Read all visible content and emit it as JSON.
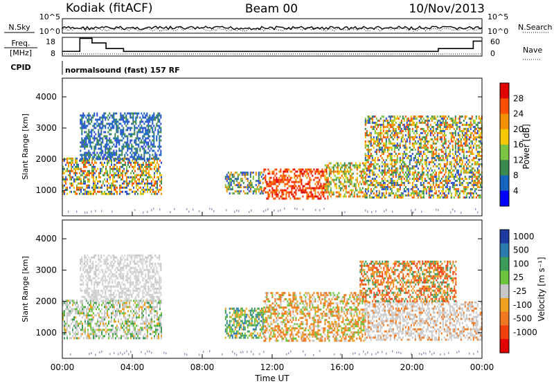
{
  "header": {
    "station": "Kodiak (fitACF)",
    "beam": "Beam 00",
    "date": "10/Nov/2013",
    "cpid_value": "normalsound (fast) 157 RF"
  },
  "left_labels": {
    "nsky": "N.Sky",
    "freq": "Freq.",
    "freq_unit": "[MHz]",
    "cpid": "CPID"
  },
  "right_labels": {
    "nsearch": "N.Search",
    "nave": "Nave"
  },
  "chart_data": [
    {
      "type": "line",
      "panel": "noise",
      "ylabels_left": [
        "10^5",
        "10^0"
      ],
      "ylabels_right": [
        "10^5",
        "10^0"
      ],
      "note": "noise.sky (solid) and noise.search (dotted), log scale"
    },
    {
      "type": "line",
      "panel": "frequency",
      "ylabels_left": [
        "18",
        "8"
      ],
      "ylabels_right": [
        "60",
        "0"
      ],
      "freq_segments": [
        [
          0,
          10.5
        ],
        [
          1.0,
          17.5
        ],
        [
          1.7,
          15
        ],
        [
          2.5,
          12
        ],
        [
          3.5,
          10.5
        ],
        [
          10.5,
          10.5
        ],
        [
          13.5,
          10.5
        ],
        [
          16.0,
          10.5
        ],
        [
          21.5,
          12
        ],
        [
          23.5,
          16
        ],
        [
          24,
          16
        ]
      ]
    },
    {
      "type": "heatmap",
      "panel": "power",
      "title": "Power [dB]",
      "ylabel": "Slant Range [km]",
      "yticks": [
        "1000",
        "2000",
        "3000",
        "4000"
      ],
      "ylim": [
        180,
        4600
      ],
      "colorbar": {
        "labels": [
          "28",
          "24",
          "20",
          "16",
          "12",
          "8",
          "4"
        ],
        "colors": [
          "#e00000",
          "#ff5000",
          "#f59000",
          "#f5c800",
          "#7cc441",
          "#3a8a50",
          "#1565c0",
          "#0000ff"
        ]
      }
    },
    {
      "type": "heatmap",
      "panel": "velocity",
      "title": "Velocity [m s⁻¹]",
      "ylabel": "Slant Range [km]",
      "yticks": [
        "1000",
        "2000",
        "3000",
        "4000"
      ],
      "ylim": [
        180,
        4600
      ],
      "colorbar": {
        "labels": [
          "1000",
          "500",
          "100",
          "25",
          "-25",
          "-100",
          "-500",
          "-1000"
        ],
        "colors": [
          "#1e3ca0",
          "#2a7ab0",
          "#3c9a5a",
          "#6cc43c",
          "#c8c8c8",
          "#f0a020",
          "#f07820",
          "#f04010",
          "#e00000"
        ]
      }
    }
  ],
  "xaxis": {
    "label": "Time UT",
    "ticks": [
      "00:00",
      "04:00",
      "08:00",
      "12:00",
      "16:00",
      "20:00",
      "00:00"
    ]
  },
  "regions": {
    "power": [
      {
        "t0": 0.0,
        "t1": 5.7,
        "r0": 900,
        "r1": 2050,
        "colors": [
          "#2b4fd0",
          "#3a8a50",
          "#7cc441",
          "#f5c800",
          "#f59000",
          "#ff5000"
        ]
      },
      {
        "t0": 1.0,
        "t1": 5.6,
        "r0": 2000,
        "r1": 3500,
        "colors": [
          "#2b4fd0",
          "#1565c0",
          "#3a8a50"
        ]
      },
      {
        "t0": 9.3,
        "t1": 11.5,
        "r0": 900,
        "r1": 1600,
        "colors": [
          "#2b4fd0",
          "#3a8a50",
          "#7cc441",
          "#f59000"
        ]
      },
      {
        "t0": 11.5,
        "t1": 15.2,
        "r0": 750,
        "r1": 1700,
        "colors": [
          "#e00000",
          "#ff3000",
          "#ff5000",
          "#f59000"
        ]
      },
      {
        "t0": 15.0,
        "t1": 17.3,
        "r0": 800,
        "r1": 1900,
        "colors": [
          "#ff5000",
          "#f59000",
          "#f5c800",
          "#7cc441",
          "#3a8a50"
        ]
      },
      {
        "t0": 17.3,
        "t1": 24.0,
        "r0": 800,
        "r1": 3400,
        "colors": [
          "#2b4fd0",
          "#3a8a50",
          "#7cc441",
          "#f5c800",
          "#f59000",
          "#ff5000"
        ]
      }
    ],
    "velocity": [
      {
        "t0": 0.0,
        "t1": 5.7,
        "r0": 850,
        "r1": 2050,
        "colors": [
          "#c8c8c8",
          "#c8c8c8",
          "#c8c8c8",
          "#3c9a5a",
          "#f0a020",
          "#6cc43c"
        ]
      },
      {
        "t0": 1.0,
        "t1": 5.6,
        "r0": 2000,
        "r1": 3500,
        "colors": [
          "#c8c8c8",
          "#d8d8d8"
        ]
      },
      {
        "t0": 9.3,
        "t1": 11.5,
        "r0": 850,
        "r1": 1800,
        "colors": [
          "#3c9a5a",
          "#2a7ab0",
          "#6cc43c",
          "#f0a020"
        ]
      },
      {
        "t0": 11.5,
        "t1": 17.3,
        "r0": 750,
        "r1": 2300,
        "colors": [
          "#f07820",
          "#f0a020",
          "#f07820",
          "#c8c8c8",
          "#6cc43c"
        ]
      },
      {
        "t0": 17.3,
        "t1": 24.0,
        "r0": 800,
        "r1": 2000,
        "colors": [
          "#c8c8c8",
          "#c8c8c8",
          "#d0d0d0",
          "#f07820"
        ]
      },
      {
        "t0": 17.0,
        "t1": 22.5,
        "r0": 2000,
        "r1": 3300,
        "colors": [
          "#f07820",
          "#f0a020",
          "#3c9a5a",
          "#f04010"
        ]
      }
    ]
  }
}
